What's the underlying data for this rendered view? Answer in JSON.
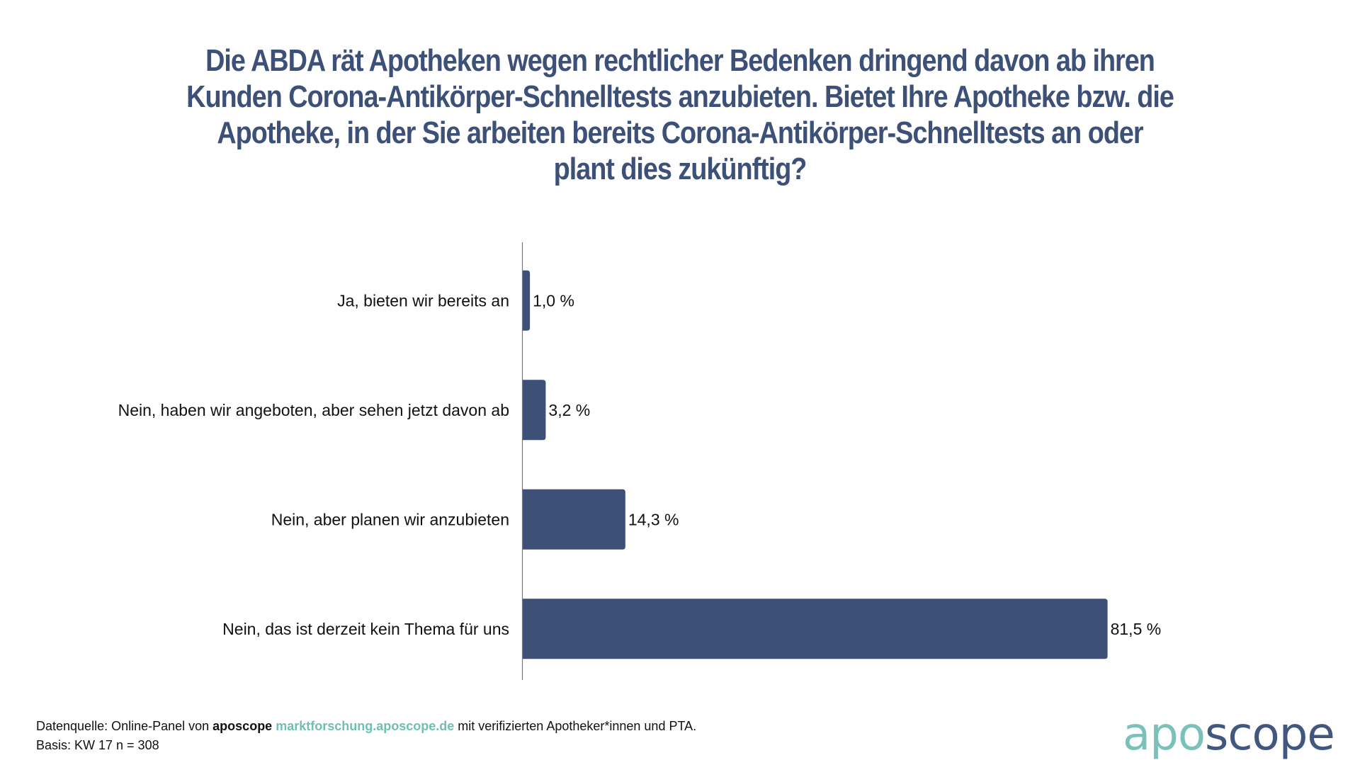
{
  "title_lines": [
    "Die ABDA rät Apotheken wegen rechtlicher Bedenken dringend davon ab ihren",
    "Kunden Corona-Antikörper-Schnelltests anzubieten. Bietet Ihre Apotheke bzw. die",
    "Apotheke, in der Sie arbeiten bereits Corona-Antikörper-Schnelltests an oder",
    "plant dies zukünftig?"
  ],
  "chart_data": {
    "type": "bar",
    "orientation": "horizontal",
    "title": "Die ABDA rät Apotheken wegen rechtlicher Bedenken dringend davon ab ihren Kunden Corona-Antikörper-Schnelltests anzubieten. Bietet Ihre Apotheke bzw. die Apotheke, in der Sie arbeiten bereits Corona-Antikörper-Schnelltests an oder plant dies zukünftig?",
    "categories": [
      "Ja, bieten wir bereits an",
      "Nein, haben wir angeboten, aber sehen jetzt davon ab",
      "Nein, aber planen wir anzubieten",
      "Nein, das ist derzeit kein Thema für uns"
    ],
    "values": [
      1.0,
      3.2,
      14.3,
      81.5
    ],
    "value_labels": [
      "1,0 %",
      "3,2 %",
      "14,3 %",
      "81,5 %"
    ],
    "unit": "%",
    "xlabel": "",
    "ylabel": "",
    "xlim": [
      0,
      100
    ],
    "grid": false,
    "legend": "none",
    "bar_color": "#3d5178"
  },
  "footer": {
    "source_prefix": "Datenquelle: Online-Panel von ",
    "source_brand": "aposcope",
    "source_link": "marktforschung.aposcope.de",
    "source_suffix": " mit verifizierten Apotheker*innen und PTA.",
    "basis": "Basis: KW 17 n = 308"
  },
  "logo": {
    "part1": "apo",
    "part2": "scope",
    "color1": "#7cc1b9",
    "color2": "#41577e"
  }
}
